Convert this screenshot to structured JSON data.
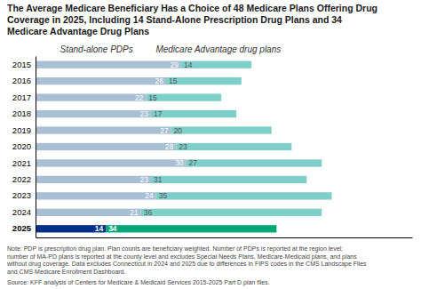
{
  "chart_data": {
    "type": "bar",
    "orientation": "horizontal",
    "stacked": true,
    "data_labels": true,
    "tick_labels": "y",
    "title": "The Average Medicare Beneficiary Has a Choice of 48 Medicare Plans Offering Drug\nCoverage in 2025, Including 14 Stand-Alone Prescription Drug Plans and 34\nMedicare Advantage Drug Plans",
    "annotations": [
      "Note: PDP is prescription drug plan. Plan counts are beneficiary weighted. Number of PDPs is reported at the region level;\nnumber of MA-PD plans is reported at the county level and excludes Special Needs Plans, Medicare-Medicaid plans, and plans\nwithout drug coverage. Data excludes Connecticut in 2024 and 2025 due to differences in FIPS codes in the CMS Landscape Files\nand CMS Medicare Enrollment Dashboard.",
      "Source: KFF analysis of Centers for Medicare & Medicaid Services 2015-2025 Part D plan files."
    ],
    "categories": [
      "2015",
      "2016",
      "2017",
      "2018",
      "2019",
      "2020",
      "2021",
      "2022",
      "2023",
      "2024",
      "2025"
    ],
    "xlim": [
      0,
      75
    ],
    "series": [
      {
        "name": "Stand-alone PDPs",
        "values": [
          29,
          26,
          22,
          23,
          27,
          28,
          30,
          23,
          24,
          21,
          14
        ],
        "colors": [
          "#a8bfd4",
          "#a8bfd4",
          "#a8bfd4",
          "#a8bfd4",
          "#a8bfd4",
          "#a8bfd4",
          "#a8bfd4",
          "#a8bfd4",
          "#a8bfd4",
          "#a8bfd4",
          "#003087"
        ]
      },
      {
        "name": "Medicare Advantage drug plans",
        "values": [
          14,
          15,
          15,
          17,
          20,
          23,
          27,
          31,
          35,
          36,
          34
        ],
        "colors": [
          "#7ececa",
          "#7ececa",
          "#7ececa",
          "#7ececa",
          "#7ececa",
          "#7ececa",
          "#7ececa",
          "#7ececa",
          "#7ececa",
          "#7ececa",
          "#00a878"
        ]
      }
    ]
  }
}
